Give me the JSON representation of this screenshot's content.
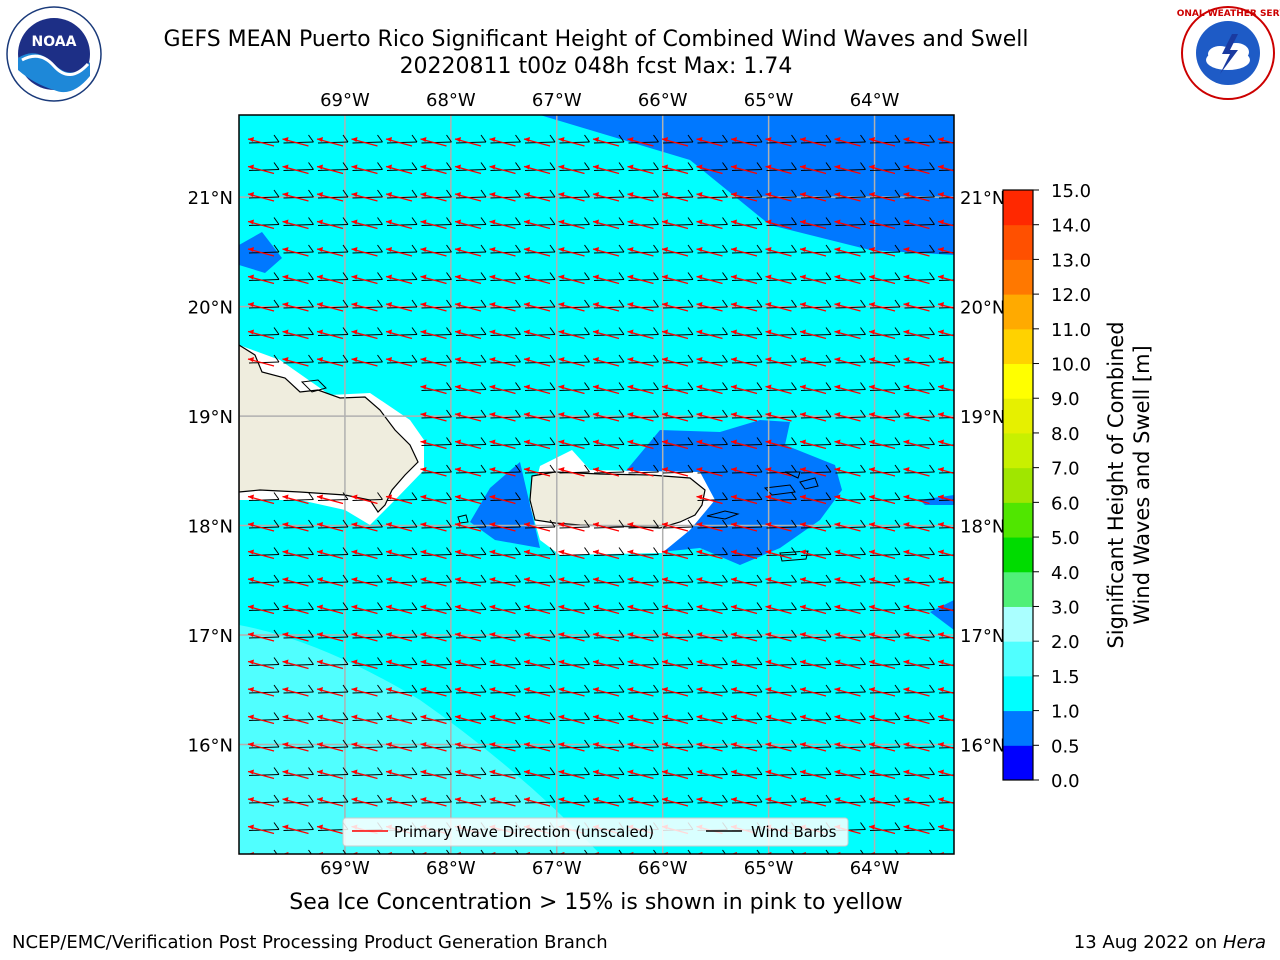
{
  "header": {
    "title_line1": "GEFS MEAN Puerto Rico Significant Height of Combined Wind Waves and Swell",
    "title_line2": "20220811 t00z 048h fcst   Max: 1.74"
  },
  "logos": {
    "noaa": {
      "icon": "noaa-logo",
      "text": "NOAA",
      "ring_text": "NATIONAL OCEANIC AND ATMOSPHERIC ADMINISTRATION · U.S. DEPARTMENT OF COMMERCE"
    },
    "nws": {
      "icon": "nws-logo",
      "ring_text": "NATIONAL WEATHER SERVICE"
    }
  },
  "map": {
    "lon_range": [
      -70.0,
      -63.25
    ],
    "lat_range": [
      15.0,
      21.75
    ],
    "lon_ticks": [
      -69,
      -68,
      -67,
      -66,
      -65,
      -64
    ],
    "lon_labels": [
      "69°W",
      "68°W",
      "67°W",
      "66°W",
      "65°W",
      "64°W"
    ],
    "lat_ticks": [
      16,
      17,
      18,
      19,
      20,
      21
    ],
    "lat_labels": [
      "16°N",
      "17°N",
      "18°N",
      "19°N",
      "20°N",
      "21°N"
    ],
    "colors": {
      "land": "#efedde",
      "coast": "#000000",
      "grid": "#b0b0b0",
      "wave_arrow": "#ff0000",
      "barb": "#000000",
      "band_0_5_1_0": "#0078ff",
      "band_1_0_1_5": "#00ffff",
      "band_1_5_2_0": "#50ffff"
    },
    "legend": {
      "wave_label": "Primary Wave Direction (unscaled)",
      "barb_label": "Wind Barbs"
    }
  },
  "colorbar": {
    "label_line1": "Significant Height of Combined",
    "label_line2": "Wind Waves and Swell [m]",
    "ticks": [
      "0.0",
      "0.5",
      "1.0",
      "1.5",
      "2.0",
      "3.0",
      "4.0",
      "5.0",
      "6.0",
      "7.0",
      "8.0",
      "9.0",
      "10.0",
      "11.0",
      "12.0",
      "13.0",
      "14.0",
      "15.0"
    ],
    "colors": [
      "#0000ff",
      "#0078ff",
      "#00ffff",
      "#50ffff",
      "#aaffff",
      "#50f078",
      "#00dc00",
      "#50e600",
      "#a0e600",
      "#c8f000",
      "#e6f000",
      "#ffff00",
      "#ffd200",
      "#ffaa00",
      "#ff7800",
      "#ff5000",
      "#ff2800"
    ]
  },
  "caption": "Sea Ice Concentration > 15% is shown in pink to yellow",
  "footer": {
    "left": "NCEP/EMC/Verification Post Processing Product Generation Branch",
    "date": "13 Aug 2022 on ",
    "host": "Hera"
  }
}
